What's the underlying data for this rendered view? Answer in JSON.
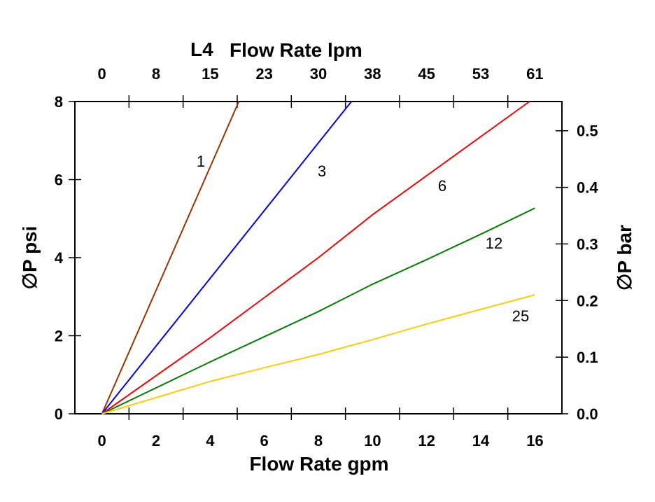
{
  "chart_data": {
    "type": "line",
    "title": "L4",
    "xlabel": "Flow Rate gpm",
    "ylabel": "∅P psi",
    "x2label": "Flow Rate lpm",
    "y2label": "∅P bar",
    "xlim": [
      -1,
      17
    ],
    "ylim": [
      0,
      8
    ],
    "x_ticks": [
      "0",
      "2",
      "4",
      "6",
      "8",
      "10",
      "12",
      "14",
      "16"
    ],
    "y_ticks": [
      "0",
      "2",
      "4",
      "6",
      "8"
    ],
    "x2_ticks": [
      "0",
      "8",
      "15",
      "23",
      "30",
      "38",
      "45",
      "53",
      "61"
    ],
    "y2_ticks": [
      "0.0",
      "0.1",
      "0.2",
      "0.3",
      "0.4",
      "0.5"
    ],
    "grid": false,
    "series": [
      {
        "name": "1",
        "color": "#993300",
        "points": [
          [
            0,
            0
          ],
          [
            5.06,
            8
          ]
        ]
      },
      {
        "name": "3",
        "color": "#0000ff",
        "points": [
          [
            0,
            0
          ],
          [
            9.22,
            8
          ]
        ]
      },
      {
        "name": "6",
        "color": "#ff0000",
        "points": [
          [
            0,
            0
          ],
          [
            4,
            1.95
          ],
          [
            8,
            4.0
          ],
          [
            10,
            5.1
          ],
          [
            12,
            6.1
          ],
          [
            15.8,
            8
          ]
        ]
      },
      {
        "name": "12",
        "color": "#008000",
        "points": [
          [
            0,
            0
          ],
          [
            4,
            1.33
          ],
          [
            8,
            2.62
          ],
          [
            10,
            3.32
          ],
          [
            12,
            3.95
          ],
          [
            14,
            4.6
          ],
          [
            16,
            5.27
          ]
        ]
      },
      {
        "name": "25",
        "color": "#ffcc00",
        "points": [
          [
            0,
            0
          ],
          [
            4,
            0.83
          ],
          [
            6,
            1.18
          ],
          [
            8,
            1.52
          ],
          [
            10,
            1.9
          ],
          [
            12,
            2.3
          ],
          [
            16,
            3.05
          ]
        ]
      }
    ]
  }
}
